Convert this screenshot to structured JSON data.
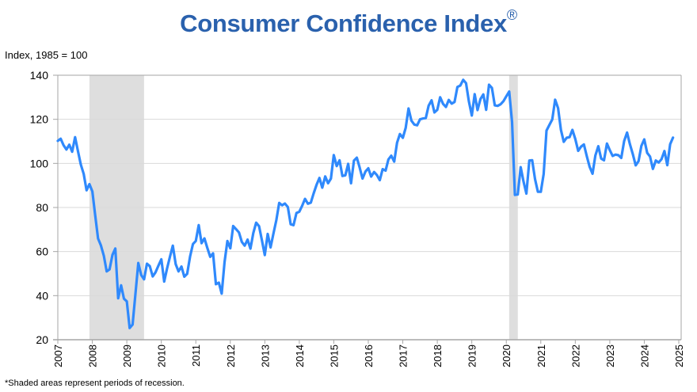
{
  "chart_data": {
    "type": "line",
    "title": "Consumer Confidence Index",
    "title_mark": "®",
    "ylabel": "Index, 1985 = 100",
    "xlabel": "",
    "note": "*Shaded areas represent periods of recession.",
    "ylim": [
      20,
      140
    ],
    "yticks": [
      20,
      40,
      60,
      80,
      100,
      120,
      140
    ],
    "xlim": [
      2007,
      2025
    ],
    "xticks": [
      "2007",
      "2008",
      "2009",
      "2010",
      "2011",
      "2012",
      "2013",
      "2014",
      "2015",
      "2016",
      "2017",
      "2018",
      "2019",
      "2020",
      "2021",
      "2022",
      "2023",
      "2024",
      "2025"
    ],
    "grid": true,
    "line_color": "#2f89fc",
    "recession_color": "#dedede",
    "recessions": [
      {
        "start": "2007-12",
        "end": "2009-06"
      },
      {
        "start": "2020-02",
        "end": "2020-04"
      }
    ],
    "series": [
      {
        "name": "Consumer Confidence Index",
        "start": "2007-01",
        "frequency": "monthly",
        "values": [
          110.2,
          111.2,
          108.2,
          106.3,
          108.5,
          105.3,
          111.9,
          105.6,
          99.5,
          95.2,
          87.8,
          90.6,
          87.3,
          76.4,
          65.9,
          62.8,
          58.1,
          51.0,
          51.9,
          58.5,
          61.4,
          38.8,
          44.7,
          38.6,
          37.4,
          25.3,
          26.9,
          40.8,
          54.8,
          49.3,
          47.4,
          54.5,
          53.4,
          48.7,
          50.6,
          53.6,
          56.5,
          46.4,
          52.3,
          57.7,
          62.7,
          54.3,
          51.0,
          53.2,
          48.6,
          49.9,
          57.8,
          63.4,
          64.8,
          72.0,
          63.8,
          66.0,
          61.7,
          57.6,
          59.2,
          45.2,
          45.9,
          40.9,
          55.2,
          64.8,
          61.5,
          71.6,
          70.2,
          68.7,
          64.4,
          62.7,
          65.4,
          61.3,
          68.4,
          73.1,
          71.5,
          65.1,
          58.4,
          68.0,
          61.9,
          68.1,
          74.3,
          82.1,
          81.0,
          81.8,
          80.2,
          72.4,
          72.0,
          77.5,
          78.1,
          80.8,
          83.9,
          81.7,
          82.2,
          86.4,
          90.3,
          93.4,
          89.0,
          94.1,
          91.0,
          93.1,
          103.8,
          98.8,
          101.4,
          94.3,
          94.6,
          99.8,
          91.0,
          101.3,
          102.6,
          98.1,
          93.1,
          96.3,
          97.8,
          94.0,
          96.1,
          94.7,
          92.4,
          97.4,
          96.7,
          101.8,
          103.5,
          100.8,
          109.4,
          113.3,
          111.6,
          116.1,
          124.9,
          119.4,
          117.6,
          117.3,
          120.0,
          120.4,
          120.6,
          126.2,
          128.6,
          123.1,
          124.3,
          130.0,
          127.0,
          125.6,
          128.8,
          127.1,
          127.9,
          134.7,
          135.3,
          137.9,
          136.4,
          128.1,
          121.7,
          131.4,
          124.2,
          129.2,
          131.3,
          124.3,
          135.7,
          134.2,
          126.3,
          126.1,
          126.8,
          128.2,
          130.4,
          132.6,
          118.8,
          85.7,
          85.9,
          98.3,
          91.7,
          86.3,
          101.3,
          101.4,
          92.9,
          87.1,
          87.1,
          95.2,
          114.9,
          117.5,
          120.0,
          128.9,
          125.1,
          115.2,
          109.8,
          111.6,
          111.9,
          115.2,
          111.1,
          105.7,
          107.6,
          108.6,
          103.2,
          98.4,
          95.3,
          103.6,
          107.8,
          102.2,
          101.4,
          109.0,
          106.0,
          103.4,
          104.0,
          103.7,
          102.5,
          110.1,
          114.0,
          108.7,
          104.3,
          99.1,
          101.0,
          108.0,
          110.9,
          104.8,
          103.1,
          97.5,
          101.3,
          100.4,
          101.9,
          105.6,
          99.2,
          108.7,
          111.7
        ]
      }
    ]
  }
}
